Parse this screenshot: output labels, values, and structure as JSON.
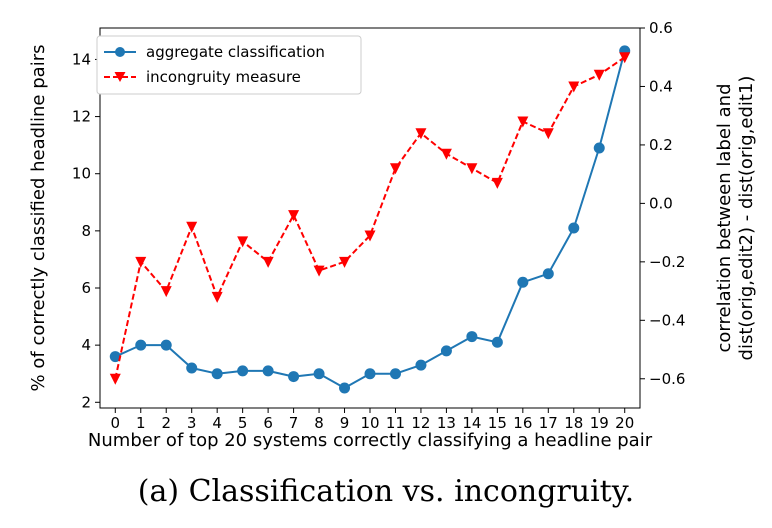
{
  "chart_data": {
    "type": "line",
    "x": [
      0,
      1,
      2,
      3,
      4,
      5,
      6,
      7,
      8,
      9,
      10,
      11,
      12,
      13,
      14,
      15,
      16,
      17,
      18,
      19,
      20
    ],
    "x_ticks": [
      "0",
      "1",
      "2",
      "3",
      "4",
      "5",
      "6",
      "7",
      "8",
      "9",
      "10",
      "11",
      "12",
      "13",
      "14",
      "15",
      "16",
      "17",
      "18",
      "19",
      "20"
    ],
    "xlim": [
      -0.6,
      20.6
    ],
    "xlabel": "Number of top 20 systems correctly classifying a headline pair",
    "ylabel_left": "% of correctly classified headline pairs",
    "ylabel_right_line1": "correlation between label and",
    "ylabel_right_line2": "dist(orig,edit2) - dist(orig,edit1)",
    "ylim_left": [
      1.8,
      15.1
    ],
    "yticks_left": [
      2,
      4,
      6,
      8,
      10,
      12,
      14
    ],
    "ylim_right": [
      -0.7,
      0.6
    ],
    "yticks_right": [
      -0.6,
      -0.4,
      -0.2,
      0.0,
      0.2,
      0.4,
      0.6
    ],
    "yticks_right_labels": [
      "−0.6",
      "−0.4",
      "−0.2",
      "0.0",
      "0.2",
      "0.4",
      "0.6"
    ],
    "grid": false,
    "legend_position": "top-left",
    "series": [
      {
        "name": "aggregate classification",
        "axis": "left",
        "color": "#1f77b4",
        "marker": "circle",
        "line_style": "solid",
        "values": [
          3.6,
          4.0,
          4.0,
          3.2,
          3.0,
          3.1,
          3.1,
          2.9,
          3.0,
          2.5,
          3.0,
          3.0,
          3.3,
          3.8,
          4.3,
          4.1,
          6.2,
          6.5,
          8.1,
          10.9,
          14.3
        ]
      },
      {
        "name": "incongruity measure",
        "axis": "right",
        "color": "#ff0000",
        "marker": "triangle-down",
        "line_style": "dashed",
        "values": [
          -0.6,
          -0.2,
          -0.3,
          -0.08,
          -0.32,
          -0.13,
          -0.2,
          -0.04,
          -0.23,
          -0.2,
          -0.11,
          0.12,
          0.24,
          0.17,
          0.12,
          0.07,
          0.28,
          0.24,
          0.4,
          0.44,
          0.5
        ]
      }
    ]
  },
  "caption": "(a) Classification vs. incongruity."
}
